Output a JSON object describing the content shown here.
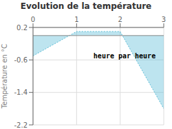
{
  "chart_data": {
    "type": "area",
    "title": "Evolution de la température",
    "y_label": "Température en °C",
    "x": [
      0,
      1,
      2,
      3
    ],
    "values": [
      -0.5,
      0.1,
      0.1,
      -1.8
    ],
    "color": "#5bbcd6",
    "line_style": "dotted",
    "xlim": [
      0,
      3
    ],
    "ylim": [
      -2.2,
      0.2
    ],
    "xticks": [
      0,
      1,
      2,
      3
    ],
    "yticks": [
      0.2,
      -0.6,
      -1.4,
      -2.2
    ],
    "grid": true,
    "annotations": [
      {
        "text": "heure par heure",
        "x": 2.1,
        "y": -0.5
      }
    ]
  }
}
